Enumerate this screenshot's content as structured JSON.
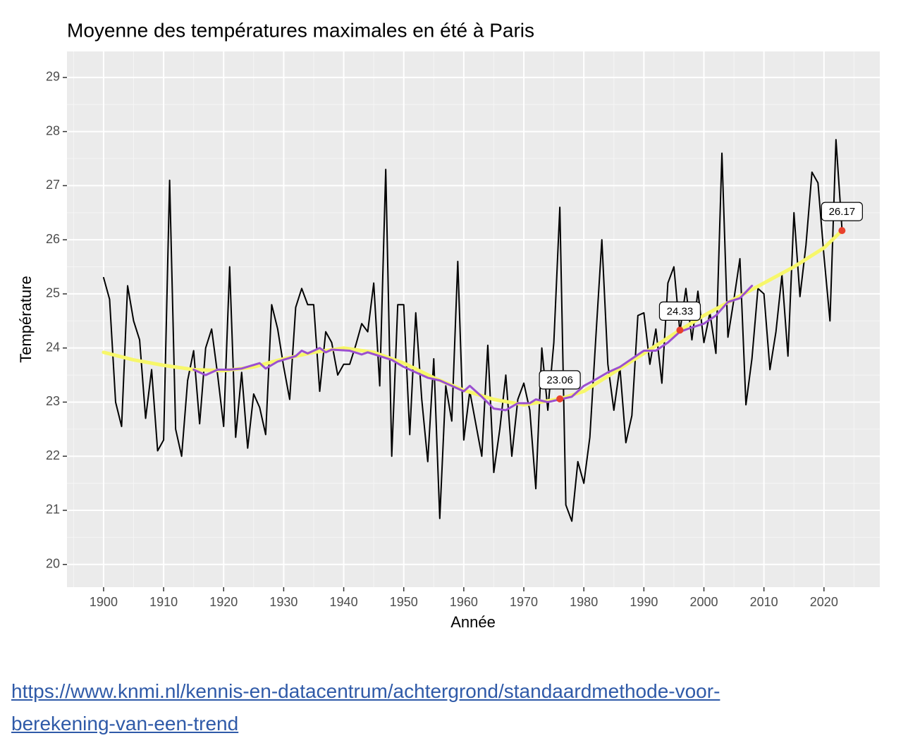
{
  "chart_data": {
    "type": "line",
    "title": "Moyenne des températures maximales en été à Paris",
    "x_label": "Année",
    "y_label": "Température",
    "xlim": [
      1893.9,
      2029.3
    ],
    "ylim": [
      19.58,
      29.48
    ],
    "xticks": [
      1900,
      1910,
      1920,
      1930,
      1940,
      1950,
      1960,
      1970,
      1980,
      1990,
      2000,
      2010,
      2020
    ],
    "yticks": [
      20,
      21,
      22,
      23,
      24,
      25,
      26,
      27,
      28,
      29
    ],
    "grid": true,
    "series": [
      {
        "color": "#000000",
        "x": [
          1900,
          1901,
          1902,
          1903,
          1904,
          1905,
          1906,
          1907,
          1908,
          1909,
          1910,
          1911,
          1912,
          1913,
          1914,
          1915,
          1916,
          1917,
          1918,
          1919,
          1920,
          1921,
          1922,
          1923,
          1924,
          1925,
          1926,
          1927,
          1928,
          1929,
          1930,
          1931,
          1932,
          1933,
          1934,
          1935,
          1936,
          1937,
          1938,
          1939,
          1940,
          1941,
          1942,
          1943,
          1944,
          1945,
          1946,
          1947,
          1948,
          1949,
          1950,
          1951,
          1952,
          1953,
          1954,
          1955,
          1956,
          1957,
          1958,
          1959,
          1960,
          1961,
          1962,
          1963,
          1964,
          1965,
          1966,
          1967,
          1968,
          1969,
          1970,
          1971,
          1972,
          1973,
          1974,
          1975,
          1976,
          1977,
          1978,
          1979,
          1980,
          1981,
          1982,
          1983,
          1984,
          1985,
          1986,
          1987,
          1988,
          1989,
          1990,
          1991,
          1992,
          1993,
          1994,
          1995,
          1996,
          1997,
          1998,
          1999,
          2000,
          2001,
          2002,
          2003,
          2004,
          2005,
          2006,
          2007,
          2008,
          2009,
          2010,
          2011,
          2012,
          2013,
          2014,
          2015,
          2016,
          2017,
          2018,
          2019,
          2020,
          2021,
          2022,
          2023
        ],
        "values": [
          25.3,
          24.9,
          23.0,
          22.55,
          25.15,
          24.5,
          24.15,
          22.7,
          23.6,
          22.1,
          22.3,
          27.1,
          22.5,
          22.0,
          23.4,
          23.95,
          22.6,
          24.0,
          24.35,
          23.5,
          22.55,
          25.5,
          22.35,
          23.55,
          22.15,
          23.15,
          22.9,
          22.4,
          24.8,
          24.35,
          23.65,
          23.05,
          24.75,
          25.1,
          24.8,
          24.8,
          23.2,
          24.3,
          24.1,
          23.5,
          23.7,
          23.7,
          24.05,
          24.45,
          24.3,
          25.2,
          23.3,
          27.3,
          22.0,
          24.8,
          24.8,
          22.4,
          24.65,
          23.05,
          21.9,
          23.8,
          20.85,
          23.3,
          22.65,
          25.6,
          22.3,
          23.2,
          22.6,
          22.0,
          24.05,
          21.7,
          22.5,
          23.5,
          22.0,
          23.05,
          23.35,
          22.85,
          21.4,
          24.0,
          22.85,
          24.1,
          26.6,
          21.1,
          20.8,
          21.9,
          21.5,
          22.35,
          24.2,
          26.0,
          23.7,
          22.85,
          23.65,
          22.25,
          22.75,
          24.6,
          24.65,
          23.7,
          24.35,
          23.35,
          25.2,
          25.5,
          24.3,
          25.1,
          24.15,
          25.05,
          24.1,
          24.65,
          23.9,
          27.6,
          24.2,
          24.9,
          25.65,
          22.95,
          23.8,
          25.1,
          25.0,
          23.6,
          24.3,
          25.35,
          23.85,
          26.5,
          24.95,
          25.9,
          27.25,
          27.05,
          25.7,
          24.5,
          27.85,
          26.2
        ]
      },
      {
        "color": "#f7f76a",
        "x": [
          1900,
          1905,
          1910,
          1915,
          1920,
          1925,
          1930,
          1935,
          1940,
          1945,
          1950,
          1955,
          1960,
          1965,
          1970,
          1976,
          1980,
          1985,
          1990,
          1996,
          2000,
          2005,
          2010,
          2015,
          2020,
          2023
        ],
        "values": [
          23.92,
          23.78,
          23.68,
          23.6,
          23.58,
          23.65,
          23.8,
          23.92,
          24.0,
          23.92,
          23.72,
          23.45,
          23.22,
          23.05,
          22.95,
          23.06,
          23.2,
          23.55,
          23.9,
          24.33,
          24.6,
          24.9,
          25.2,
          25.5,
          25.85,
          26.17
        ]
      },
      {
        "color": "#9b4fd0",
        "x": [
          1915,
          1917,
          1919,
          1921,
          1923,
          1926,
          1927,
          1929,
          1932,
          1933,
          1934,
          1936,
          1937,
          1938,
          1941,
          1943,
          1944,
          1946,
          1948,
          1950,
          1952,
          1954,
          1956,
          1958,
          1960,
          1961,
          1963,
          1965,
          1967,
          1969,
          1971,
          1972,
          1974,
          1976,
          1978,
          1980,
          1982,
          1984,
          1986,
          1988,
          1990,
          1992,
          1994,
          1996,
          1998,
          2000,
          2002,
          2004,
          2006,
          2008
        ],
        "values": [
          23.6,
          23.5,
          23.6,
          23.6,
          23.62,
          23.72,
          23.62,
          23.75,
          23.85,
          23.95,
          23.9,
          24.0,
          23.92,
          23.97,
          23.95,
          23.88,
          23.92,
          23.85,
          23.78,
          23.65,
          23.55,
          23.45,
          23.4,
          23.3,
          23.2,
          23.3,
          23.1,
          22.88,
          22.85,
          22.98,
          22.98,
          23.05,
          23.0,
          23.05,
          23.1,
          23.3,
          23.42,
          23.55,
          23.65,
          23.8,
          23.95,
          23.95,
          24.1,
          24.3,
          24.38,
          24.45,
          24.6,
          24.85,
          24.92,
          25.15
        ]
      }
    ],
    "highlights": {
      "color": "#e8412c",
      "x": [
        1976,
        1996,
        2023
      ],
      "values": [
        23.06,
        24.33,
        26.17
      ]
    }
  },
  "link": "https://www.knmi.nl/kennis-en-datacentrum/achtergrond/standaardmethode-voor-berekening-van-een-trend"
}
